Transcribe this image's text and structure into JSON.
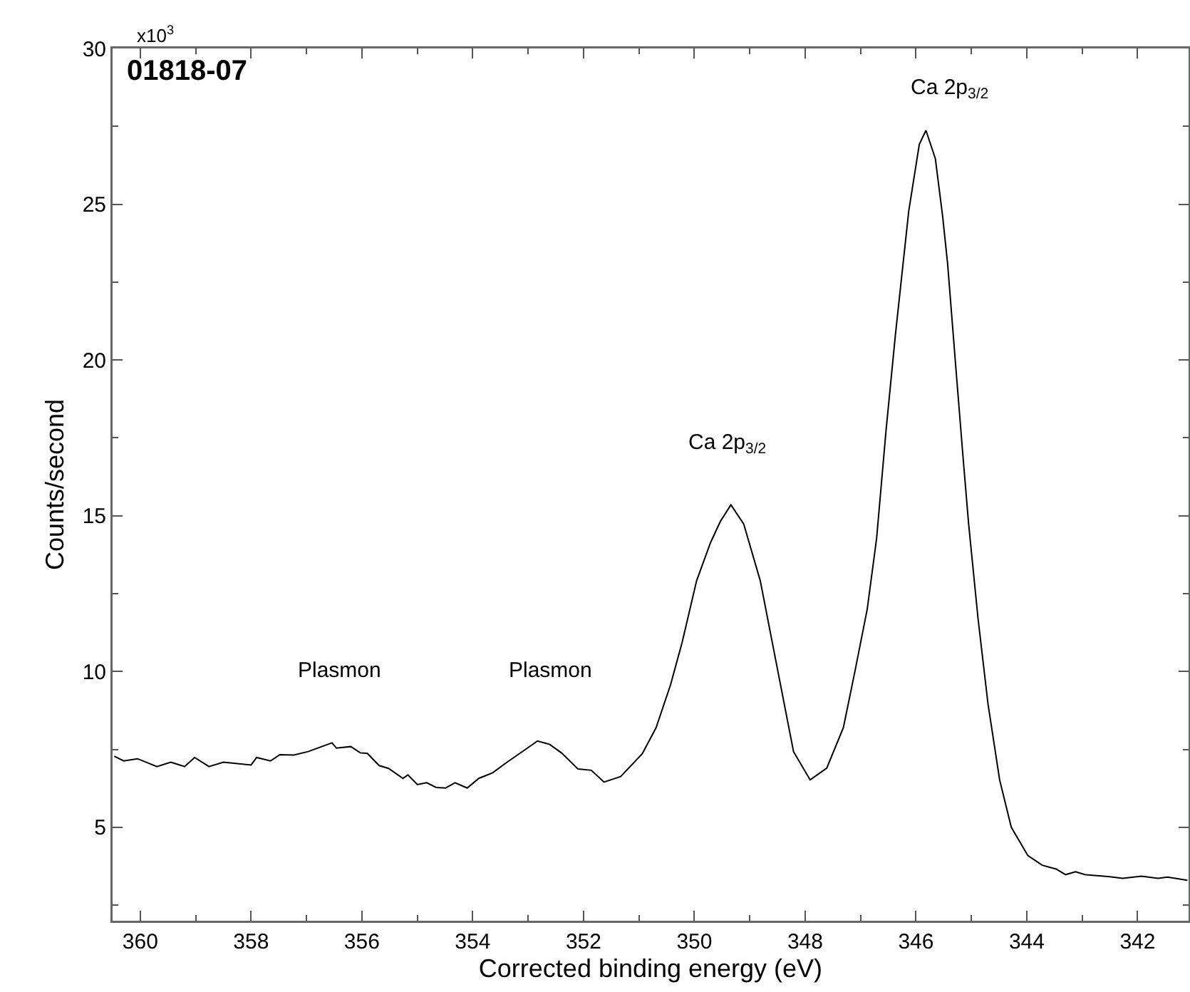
{
  "chart_data": {
    "type": "line",
    "title": "01818-07",
    "xlabel": "Corrected binding energy (eV)",
    "ylabel": "Counts/second",
    "annotations": [
      "x10$^{3}$",
      "Plasmon",
      "Plasmon",
      "Ca 2p$_{3/2}$",
      "Ca 2p$_{3/2}$"
    ],
    "series": [
      {
        "color": "#000000",
        "x": [
          360.47,
          360.3,
          360.05,
          359.7,
          359.45,
          359.2,
          359.02,
          358.76,
          358.5,
          358.0,
          357.9,
          357.65,
          357.48,
          357.23,
          356.97,
          356.54,
          356.46,
          356.2,
          356.03,
          355.9,
          355.69,
          355.52,
          355.26,
          355.17,
          355.0,
          354.83,
          354.66,
          354.49,
          354.32,
          354.1,
          353.89,
          353.64,
          353.38,
          353.12,
          352.83,
          352.61,
          352.4,
          352.1,
          351.86,
          351.63,
          351.33,
          350.94,
          350.69,
          350.43,
          350.22,
          349.96,
          349.71,
          349.53,
          349.34,
          349.11,
          348.81,
          348.51,
          348.21,
          347.91,
          347.61,
          347.31,
          347.1,
          346.88,
          346.71,
          346.54,
          346.37,
          346.13,
          345.94,
          345.82,
          345.65,
          345.52,
          345.43,
          345.26,
          345.15,
          345.05,
          344.88,
          344.7,
          344.49,
          344.28,
          343.98,
          343.72,
          343.47,
          343.3,
          343.12,
          342.95,
          342.53,
          342.27,
          341.93,
          341.63,
          341.46,
          341.1
        ],
        "values": [
          7.28,
          7.13,
          7.2,
          6.95,
          7.09,
          6.95,
          7.24,
          6.95,
          7.09,
          7.0,
          7.24,
          7.13,
          7.33,
          7.32,
          7.43,
          7.71,
          7.54,
          7.59,
          7.39,
          7.37,
          6.98,
          6.89,
          6.57,
          6.68,
          6.37,
          6.43,
          6.28,
          6.26,
          6.43,
          6.26,
          6.57,
          6.75,
          7.09,
          7.41,
          7.77,
          7.66,
          7.39,
          6.87,
          6.83,
          6.45,
          6.63,
          7.36,
          8.2,
          9.57,
          10.94,
          12.91,
          14.13,
          14.82,
          15.35,
          14.74,
          12.91,
          10.17,
          7.43,
          6.52,
          6.9,
          8.2,
          10.02,
          12.0,
          14.28,
          17.74,
          20.83,
          24.79,
          26.92,
          27.37,
          26.46,
          24.63,
          23.11,
          19.3,
          16.87,
          14.74,
          11.7,
          8.96,
          6.52,
          5.0,
          4.09,
          3.78,
          3.66,
          3.48,
          3.57,
          3.48,
          3.42,
          3.36,
          3.43,
          3.36,
          3.4,
          3.3
        ]
      }
    ],
    "xlim": [
      360.5,
      341.08
    ],
    "xticks": [
      360,
      {
        "value": 359,
        "label": null
      },
      358,
      {
        "value": 357,
        "label": null
      },
      356,
      {
        "value": 355,
        "label": null
      },
      354,
      {
        "value": 353,
        "label": null
      },
      352,
      {
        "value": 351,
        "label": null
      },
      350,
      {
        "value": 349,
        "label": null
      },
      348,
      {
        "value": 347,
        "label": null
      },
      346,
      {
        "value": 345,
        "label": null
      },
      344,
      {
        "value": 343,
        "label": null
      },
      342
    ],
    "ylim": [
      2,
      30
    ],
    "yticks": [
      {
        "value": 2.5,
        "label": null
      },
      5,
      {
        "value": 7.5,
        "label": null
      },
      10,
      {
        "value": 12.5,
        "label": null
      },
      15,
      {
        "value": 17.5,
        "label": null
      },
      20,
      {
        "value": 22.5,
        "label": null
      },
      25,
      {
        "value": 27.5,
        "label": null
      },
      30
    ],
    "grid": false,
    "marker": "none",
    "line_style": "solid"
  }
}
